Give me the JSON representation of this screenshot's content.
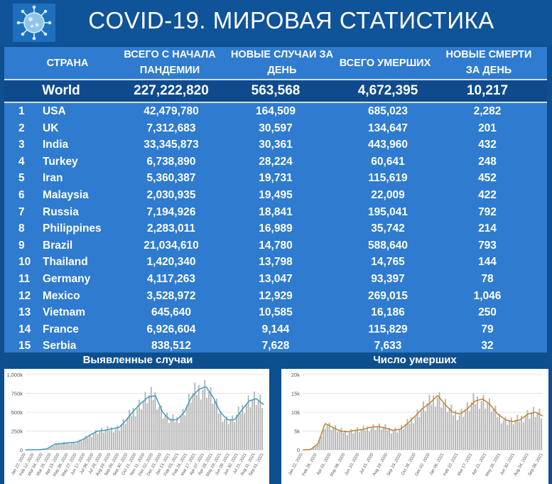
{
  "header": {
    "title": "COVID-19. МИРОВАЯ СТАТИСТИКА",
    "logo_icon": "coronavirus-icon"
  },
  "colors": {
    "background": "#0e4f8e",
    "table": "#2e7bd0",
    "world_row": "#0f4b8c",
    "line_cases": "#3a9bc4",
    "line_deaths": "#c0832d",
    "bars": "#b8b8b8"
  },
  "table": {
    "headers": [
      "СТРАНА",
      "ВСЕГО С НАЧАЛА ПАНДЕМИИ",
      "НОВЫЕ СЛУЧАИ ЗА ДЕНЬ",
      "ВСЕГО УМЕРШИХ",
      "НОВЫЕ СМЕРТИ ЗА ДЕНЬ"
    ],
    "world": {
      "name": "World",
      "total_cases": "227,222,820",
      "new_cases": "563,568",
      "total_deaths": "4,672,395",
      "new_deaths": "10,217"
    },
    "rows": [
      {
        "rank": "1",
        "name": "USA",
        "total_cases": "42,479,780",
        "new_cases": "164,509",
        "total_deaths": "685,023",
        "new_deaths": "2,282"
      },
      {
        "rank": "2",
        "name": "UK",
        "total_cases": "7,312,683",
        "new_cases": "30,597",
        "total_deaths": "134,647",
        "new_deaths": "201"
      },
      {
        "rank": "3",
        "name": "India",
        "total_cases": "33,345,873",
        "new_cases": "30,361",
        "total_deaths": "443,960",
        "new_deaths": "432"
      },
      {
        "rank": "4",
        "name": "Turkey",
        "total_cases": "6,738,890",
        "new_cases": "28,224",
        "total_deaths": "60,641",
        "new_deaths": "248"
      },
      {
        "rank": "5",
        "name": "Iran",
        "total_cases": "5,360,387",
        "new_cases": "19,731",
        "total_deaths": "115,619",
        "new_deaths": "452"
      },
      {
        "rank": "6",
        "name": "Malaysia",
        "total_cases": "2,030,935",
        "new_cases": "19,495",
        "total_deaths": "22,009",
        "new_deaths": "422"
      },
      {
        "rank": "7",
        "name": "Russia",
        "total_cases": "7,194,926",
        "new_cases": "18,841",
        "total_deaths": "195,041",
        "new_deaths": "792"
      },
      {
        "rank": "8",
        "name": "Philippines",
        "total_cases": "2,283,011",
        "new_cases": "16,989",
        "total_deaths": "35,742",
        "new_deaths": "214"
      },
      {
        "rank": "9",
        "name": "Brazil",
        "total_cases": "21,034,610",
        "new_cases": "14,780",
        "total_deaths": "588,640",
        "new_deaths": "793"
      },
      {
        "rank": "10",
        "name": "Thailand",
        "total_cases": "1,420,340",
        "new_cases": "13,798",
        "total_deaths": "14,765",
        "new_deaths": "144"
      },
      {
        "rank": "11",
        "name": "Germany",
        "total_cases": "4,117,263",
        "new_cases": "13,047",
        "total_deaths": "93,397",
        "new_deaths": "78"
      },
      {
        "rank": "12",
        "name": "Mexico",
        "total_cases": "3,528,972",
        "new_cases": "12,929",
        "total_deaths": "269,015",
        "new_deaths": "1,046"
      },
      {
        "rank": "13",
        "name": "Vietnam",
        "total_cases": "645,640",
        "new_cases": "10,585",
        "total_deaths": "16,186",
        "new_deaths": "250"
      },
      {
        "rank": "14",
        "name": "France",
        "total_cases": "6,926,604",
        "new_cases": "9,144",
        "total_deaths": "115,829",
        "new_deaths": "79"
      },
      {
        "rank": "15",
        "name": "Serbia",
        "total_cases": "838,512",
        "new_cases": "7,628",
        "total_deaths": "7,633",
        "new_deaths": "32"
      }
    ]
  },
  "chart_data": [
    {
      "type": "bar",
      "title": "Выявленные случаи",
      "xlabel": "",
      "ylabel": "",
      "ylim": [
        0,
        1000000
      ],
      "y_ticks": [
        "0",
        "250k",
        "500k",
        "750k",
        "1,000k"
      ],
      "x_ticks": [
        "Jan 22, 2020",
        "Feb 12, 2020",
        "Mar 04, 2020",
        "Mar 25, 2020",
        "Apr 15, 2020",
        "May 06, 2020",
        "May 27, 2020",
        "Jun 17, 2020",
        "Jul 08, 2020",
        "Jul 29, 2020",
        "Aug 19, 2020",
        "Sep 09, 2020",
        "Sep 30, 2020",
        "Oct 21, 2020",
        "Nov 11, 2020",
        "Dec 02, 2020",
        "Dec 23, 2020",
        "Jan 13, 2021",
        "Feb 03, 2021",
        "Feb 24, 2021",
        "Mar 17, 2021",
        "Apr 07, 2021",
        "Apr 28, 2021",
        "May 19, 2021",
        "Jun 09, 2021",
        "Jun 30, 2021",
        "Jul 21, 2021",
        "Aug 11, 2021",
        "Sep 01, 2021"
      ],
      "series": [
        {
          "values": [
            0,
            2000,
            2500,
            15000,
            75000,
            85000,
            95000,
            100000,
            140000,
            200000,
            250000,
            260000,
            280000,
            300000,
            400000,
            520000,
            620000,
            700000,
            720000,
            500000,
            400000,
            400000,
            500000,
            700000,
            800000,
            840000,
            700000,
            500000,
            400000,
            400000,
            530000,
            650000,
            680000,
            600000
          ]
        }
      ]
    },
    {
      "type": "bar",
      "title": "Число умерших",
      "xlabel": "",
      "ylabel": "",
      "ylim": [
        0,
        20000
      ],
      "y_ticks": [
        "0",
        "5k",
        "10k",
        "15k",
        "20k"
      ],
      "x_ticks": [
        "Jan 22, 2020",
        "Feb 26, 2020",
        "Apr 01, 2020",
        "May 06, 2020",
        "Jun 10, 2020",
        "Jul 15, 2020",
        "Aug 19, 2020",
        "Sep 23, 2020",
        "Oct 28, 2020",
        "Dec 02, 2020",
        "Jan 06, 2021",
        "Feb 10, 2021",
        "Mar 17, 2021",
        "Apr 21, 2021",
        "May 26, 2021",
        "Jun 30, 2021",
        "Aug 04, 2021",
        "Sep 08, 2021"
      ],
      "series": [
        {
          "values": [
            0,
            50,
            1500,
            7000,
            6000,
            5000,
            4800,
            5200,
            5400,
            6000,
            6200,
            5800,
            5200,
            5500,
            7000,
            9000,
            11000,
            12500,
            14500,
            12000,
            10000,
            9500,
            11000,
            13000,
            13500,
            12000,
            9500,
            8000,
            7500,
            8000,
            9500,
            10000,
            9000
          ]
        }
      ]
    }
  ]
}
